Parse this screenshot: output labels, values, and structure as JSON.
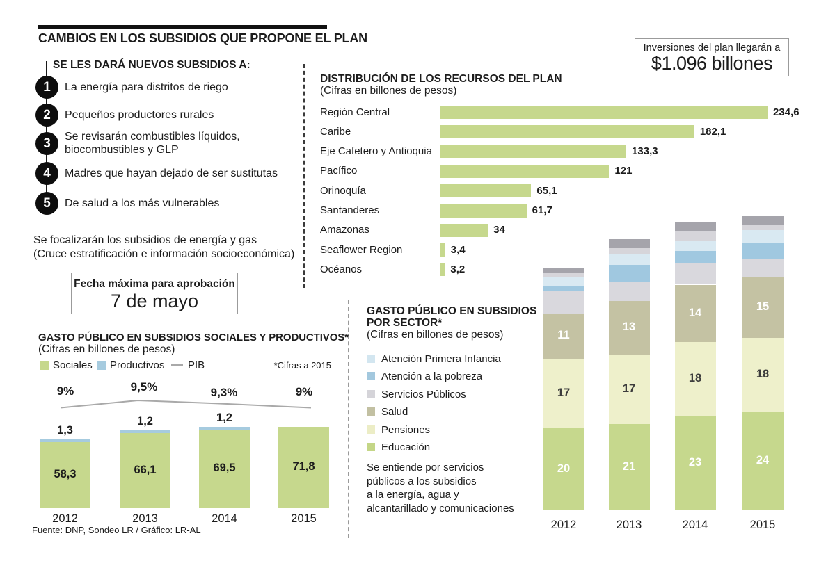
{
  "header": {
    "title": "CAMBIOS EN LOS SUBSIDIOS QUE PROPONE EL PLAN"
  },
  "investment_box": {
    "line1": "Inversiones del plan llegarán a",
    "line2": "$1.096 billones"
  },
  "new_subsidies": {
    "heading": "SE LES DARÁ NUEVOS SUBSIDIOS A:",
    "items": [
      {
        "number": "1",
        "text": "La energía para distritos de riego"
      },
      {
        "number": "2",
        "text": "Pequeños productores rurales"
      },
      {
        "number": "3",
        "text": "Se revisarán combustibles líquidos, biocombustibles y GLP"
      },
      {
        "number": "4",
        "text": "Madres que hayan dejado de ser sustitutas"
      },
      {
        "number": "5",
        "text": "De salud a los más vulnerables"
      }
    ],
    "footnote_line1": "Se focalizarán los subsidios de energía y gas",
    "footnote_line2": "(Cruce estratificación e información socioeconómica)"
  },
  "approval_box": {
    "line1": "Fecha máxima para aprobación",
    "line2": "7 de mayo"
  },
  "footer": {
    "source": "Fuente: DNP, Sondeo LR / Gráfico: LR-AL"
  },
  "chart_data": [
    {
      "id": "distribucion_recursos",
      "type": "bar",
      "orientation": "horizontal",
      "title": "DISTRIBUCIÓN DE LOS RECURSOS DEL PLAN",
      "subtitle": "(Cifras en billones de pesos)",
      "bar_color": "#c6d88d",
      "xlim": [
        0,
        240
      ],
      "grid": false,
      "categories": [
        "Región Central",
        "Caribe",
        "Eje Cafetero y Antioquia",
        "Pacífico",
        "Orinoquía",
        "Santanderes",
        "Amazonas",
        "Seaflower Region",
        "Océanos"
      ],
      "values": [
        234.6,
        182.1,
        133.3,
        121,
        65.1,
        61.7,
        34,
        3.4,
        3.2
      ],
      "value_labels": [
        "234,6",
        "182,1",
        "133,3",
        "121",
        "65,1",
        "61,7",
        "34",
        "3,4",
        "3,2"
      ]
    },
    {
      "id": "gasto_sociales_productivos",
      "type": "bar",
      "subtype": "stacked-with-line",
      "title": "GASTO PÚBLICO EN SUBSIDIOS SOCIALES Y PRODUCTIVOS*",
      "subtitle": "(Cifras en billones de pesos)",
      "footnote": "*Cifras a 2015",
      "categories": [
        "2012",
        "2013",
        "2014",
        "2015"
      ],
      "legend": [
        {
          "label": "Sociales",
          "color": "#c6d88d",
          "marker": "square"
        },
        {
          "label": "Productivos",
          "color": "#a6cbdf",
          "marker": "square"
        },
        {
          "label": "PIB",
          "color": "#a9a9a9",
          "marker": "line"
        }
      ],
      "series": [
        {
          "name": "Sociales",
          "color": "#c6d88d",
          "values": [
            58.3,
            66.1,
            69.5,
            71.8
          ],
          "labels": [
            "58,3",
            "66,1",
            "69,5",
            "71,8"
          ],
          "label_color": "#1c1c1c"
        },
        {
          "name": "Productivos",
          "color": "#a6cbdf",
          "values": [
            1.3,
            1.2,
            1.2,
            null
          ],
          "labels": [
            "1,3",
            "1,2",
            "1,2",
            null
          ],
          "label_color": "#1c1c1c"
        }
      ],
      "pib_line": {
        "name": "PIB",
        "color": "#a9a9a9",
        "values_pct": [
          9,
          9.5,
          9.3,
          9
        ],
        "labels": [
          "9%",
          "9,5%",
          "9,3%",
          "9%"
        ]
      }
    },
    {
      "id": "gasto_por_sector",
      "type": "bar",
      "subtype": "stacked",
      "title_line1": "GASTO PÚBLICO EN SUBSIDIOS",
      "title_line2": "POR SECTOR*",
      "subtitle": "(Cifras en billones de pesos)",
      "categories": [
        "2012",
        "2013",
        "2014",
        "2015"
      ],
      "legend": [
        {
          "label": "Atención Primera Infancia",
          "color": "#d3e6f0"
        },
        {
          "label": "Atención a la pobreza",
          "color": "#a3c8de"
        },
        {
          "label": "Servicios Públicos",
          "color": "#d5d4d9"
        },
        {
          "label": "Salud",
          "color": "#c2c0a2"
        },
        {
          "label": "Pensiones",
          "color": "#ecedc6"
        },
        {
          "label": "Educación",
          "color": "#c4d687"
        }
      ],
      "segments_bottom_to_top": [
        {
          "name": "Educación",
          "color": "#c6d88d",
          "values": [
            20,
            21,
            23,
            24
          ],
          "show_labels": true,
          "label_color": "#ffffff",
          "estimated": false
        },
        {
          "name": "Pensiones",
          "color": "#eef0cb",
          "values": [
            17,
            17,
            18,
            18
          ],
          "show_labels": true,
          "label_color": "#3c3c3c",
          "estimated": false
        },
        {
          "name": "Salud",
          "color": "#c4c2a3",
          "values": [
            11,
            13,
            14,
            15
          ],
          "show_labels": true,
          "label_color": "#ffffff",
          "estimated": false
        },
        {
          "name": "Servicios Públicos",
          "color": "#d9d8dd",
          "values": [
            5.4,
            4.8,
            5.1,
            4.4
          ],
          "show_labels": false,
          "estimated": true
        },
        {
          "name": "Atención a la pobreza",
          "color": "#a0c8e0",
          "values": [
            1.4,
            4.1,
            3.1,
            3.8
          ],
          "show_labels": false,
          "estimated": true
        },
        {
          "name": "Atención Primera Infancia",
          "color": "#d9e9f2",
          "values": [
            2.2,
            2.6,
            2.5,
            3.1
          ],
          "show_labels": false,
          "estimated": true
        },
        {
          "name": "segmento-gris-claro-sin-etiqueta",
          "color": "#d6d5da",
          "values": [
            1,
            1.4,
            2.3,
            1.4
          ],
          "show_labels": false,
          "estimated": true
        },
        {
          "name": "segmento-gris-oscuro-sin-etiqueta",
          "color": "#a5a4ab",
          "values": [
            1,
            2.2,
            2.2,
            2
          ],
          "show_labels": false,
          "estimated": true
        }
      ],
      "note_lines": [
        "Se entiende por servicios",
        "públicos a los subsidios",
        "a la energía, agua y",
        "alcantarillado y comunicaciones"
      ]
    }
  ]
}
